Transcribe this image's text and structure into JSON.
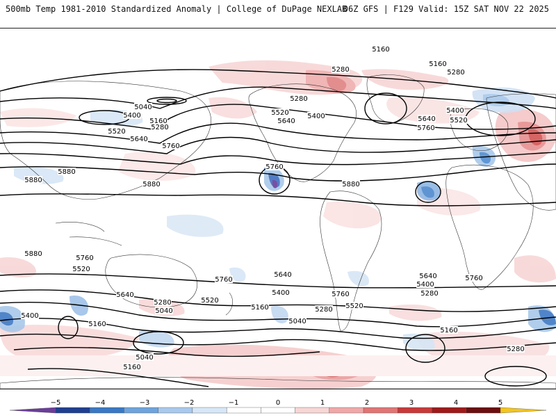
{
  "header": {
    "title_left": "500mb Temp 1981-2010 Standardized Anomaly | College of DuPage NEXLAB",
    "title_right": "06Z GFS | F129 Valid: 15Z SAT NOV 22 2025"
  },
  "map": {
    "contour_labels": [
      {
        "text": "5160"
      },
      {
        "text": "5160"
      },
      {
        "text": "5280"
      },
      {
        "text": "5280"
      },
      {
        "text": "5280"
      },
      {
        "text": "5040"
      },
      {
        "text": "5160"
      },
      {
        "text": "5280"
      },
      {
        "text": "5400"
      },
      {
        "text": "5520"
      },
      {
        "text": "5640"
      },
      {
        "text": "5760"
      },
      {
        "text": "5520"
      },
      {
        "text": "5640"
      },
      {
        "text": "5400"
      },
      {
        "text": "5760"
      },
      {
        "text": "5880"
      },
      {
        "text": "5880"
      },
      {
        "text": "5880"
      },
      {
        "text": "5400"
      },
      {
        "text": "5520"
      },
      {
        "text": "5640"
      },
      {
        "text": "5760"
      },
      {
        "text": "5880"
      },
      {
        "text": "5880"
      },
      {
        "text": "5760"
      },
      {
        "text": "5520"
      },
      {
        "text": "5640"
      },
      {
        "text": "5760"
      },
      {
        "text": "5280"
      },
      {
        "text": "5040"
      },
      {
        "text": "5520"
      },
      {
        "text": "5400"
      },
      {
        "text": "5160"
      },
      {
        "text": "5640"
      },
      {
        "text": "5400"
      },
      {
        "text": "5160"
      },
      {
        "text": "5280"
      },
      {
        "text": "5040"
      },
      {
        "text": "5040"
      },
      {
        "text": "5160"
      },
      {
        "text": "5760"
      },
      {
        "text": "5520"
      },
      {
        "text": "5640"
      },
      {
        "text": "5400"
      },
      {
        "text": "5280"
      },
      {
        "text": "5760"
      },
      {
        "text": "5160"
      },
      {
        "text": "5280"
      }
    ]
  },
  "colorbar": {
    "ticks": [
      "−5",
      "−4",
      "−3",
      "−2",
      "−1",
      "0",
      "1",
      "2",
      "3",
      "4",
      "5"
    ],
    "colors": [
      "#6a3d9a",
      "#1f3f8f",
      "#3a78c4",
      "#6fa3dc",
      "#a9c9ec",
      "#d8e7f7",
      "#ffffff",
      "#ffffff",
      "#f7d6d6",
      "#f0a8a8",
      "#e07575",
      "#c83a3a",
      "#9e1a1a",
      "#6b0f0f",
      "#f5c518"
    ]
  }
}
